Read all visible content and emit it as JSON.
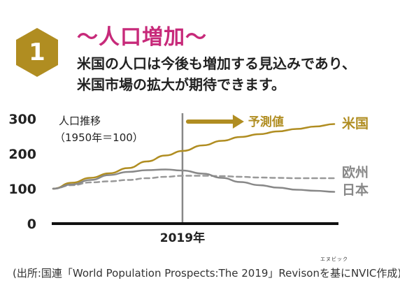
{
  "badge": {
    "number": "1",
    "color": "#b08d21"
  },
  "heading": "〜人口増加〜",
  "subtitle_lines": [
    "米国の人口は今後も増加する見込みであり、",
    "米国市場の拡大が期待できます。"
  ],
  "source": "(出所:国連「World Population Prospects:The 2019」Revisonを基にNVIC作成)",
  "source_ruby": "エヌビック",
  "colors": {
    "accent": "#c72a7a",
    "gold": "#b08d21",
    "gray": "#888888"
  },
  "chart_data": {
    "type": "line",
    "title": "人口推移",
    "subtitle": "（1950年＝100）",
    "ylim": [
      0,
      300
    ],
    "yticks": [
      "0",
      "100",
      "200",
      "300"
    ],
    "xlim": [
      1950,
      2100
    ],
    "marker": {
      "x": 2019,
      "label": "2019年"
    },
    "forecast_label": "予測値",
    "series": [
      {
        "name": "米国",
        "color": "#b08d21",
        "dashed": false,
        "label_color": "#b08d21",
        "x": [
          1950,
          1960,
          1970,
          1980,
          1990,
          2000,
          2010,
          2019,
          2030,
          2040,
          2050,
          2060,
          2070,
          2080,
          2090,
          2100
        ],
        "y": [
          100,
          117,
          131,
          144,
          159,
          178,
          195,
          208,
          224,
          237,
          248,
          256,
          264,
          271,
          278,
          285
        ]
      },
      {
        "name": "欧州",
        "color": "#999999",
        "dashed": true,
        "label_color": "#888888",
        "x": [
          1950,
          1960,
          1970,
          1980,
          1990,
          2000,
          2010,
          2019,
          2030,
          2040,
          2050,
          2060,
          2070,
          2080,
          2090,
          2100
        ],
        "y": [
          100,
          110,
          118,
          121,
          125,
          130,
          134,
          137,
          137,
          136,
          134,
          132,
          131,
          130,
          130,
          130
        ]
      },
      {
        "name": "日本",
        "color": "#888888",
        "dashed": false,
        "label_color": "#888888",
        "x": [
          1950,
          1960,
          1970,
          1980,
          1990,
          2000,
          2010,
          2019,
          2030,
          2040,
          2050,
          2060,
          2070,
          2080,
          2090,
          2100
        ],
        "y": [
          100,
          112,
          125,
          139,
          148,
          153,
          155,
          152,
          143,
          131,
          119,
          110,
          103,
          97,
          94,
          91
        ]
      }
    ]
  }
}
